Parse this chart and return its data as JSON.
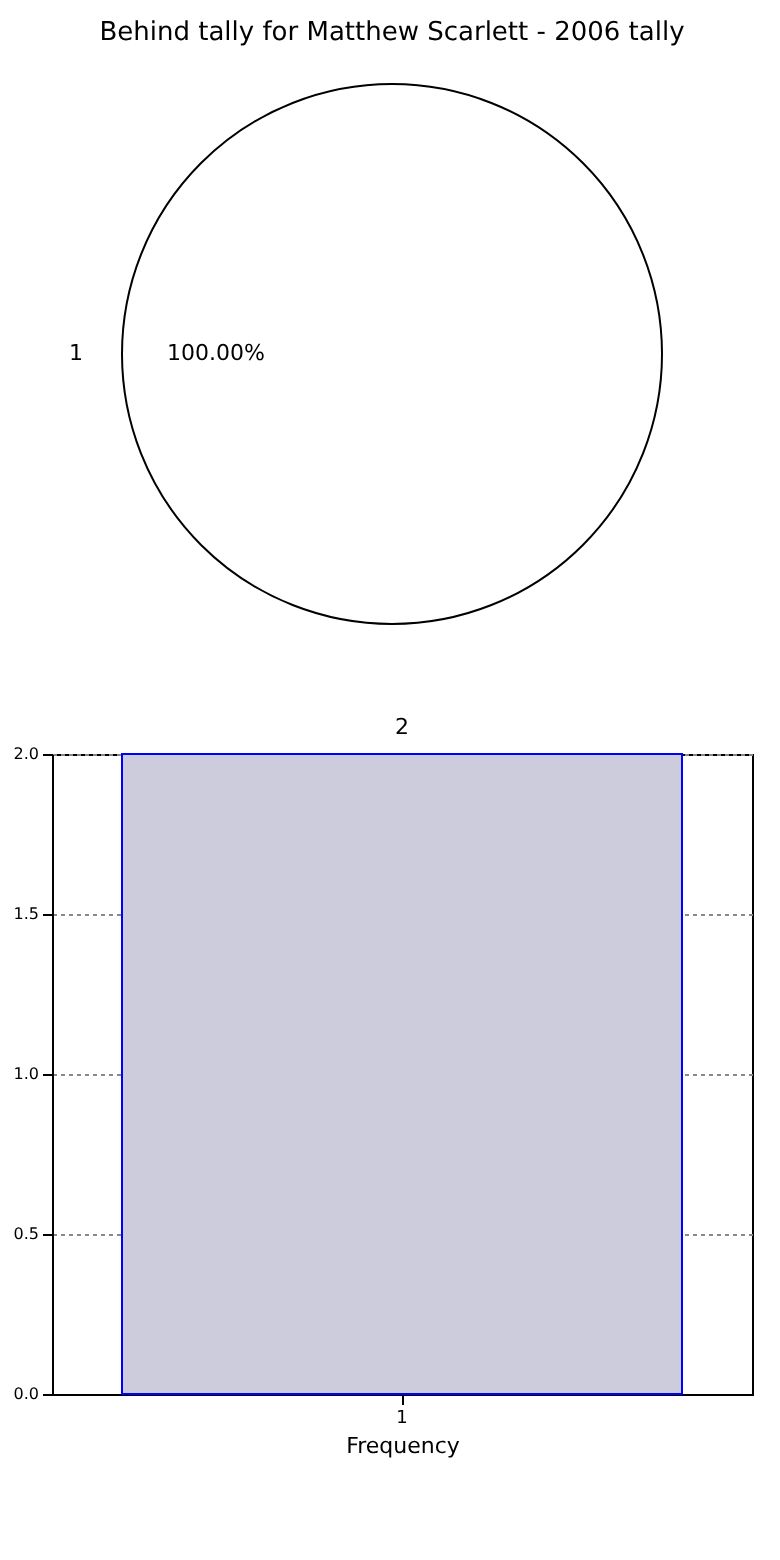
{
  "chart_data": [
    {
      "type": "pie",
      "title": "Behind tally for Matthew Scarlett - 2006 tally",
      "categories": [
        "1"
      ],
      "values": [
        100
      ],
      "colors": [
        "#ffffff"
      ],
      "value_labels": [
        "100.00%"
      ]
    },
    {
      "type": "bar",
      "xlabel": "Frequency",
      "categories": [
        "1"
      ],
      "values": [
        2
      ],
      "color": "#ccccdd",
      "ylim": [
        0,
        2
      ],
      "yticks": [
        {
          "value": 0,
          "label": "0.0"
        },
        {
          "value": 0.5,
          "label": "0.5"
        },
        {
          "value": 1,
          "label": "1.0"
        },
        {
          "value": 1.5,
          "label": "1.5"
        },
        {
          "value": 2,
          "label": "2.0"
        }
      ],
      "grid": true,
      "data_labels": true
    }
  ]
}
